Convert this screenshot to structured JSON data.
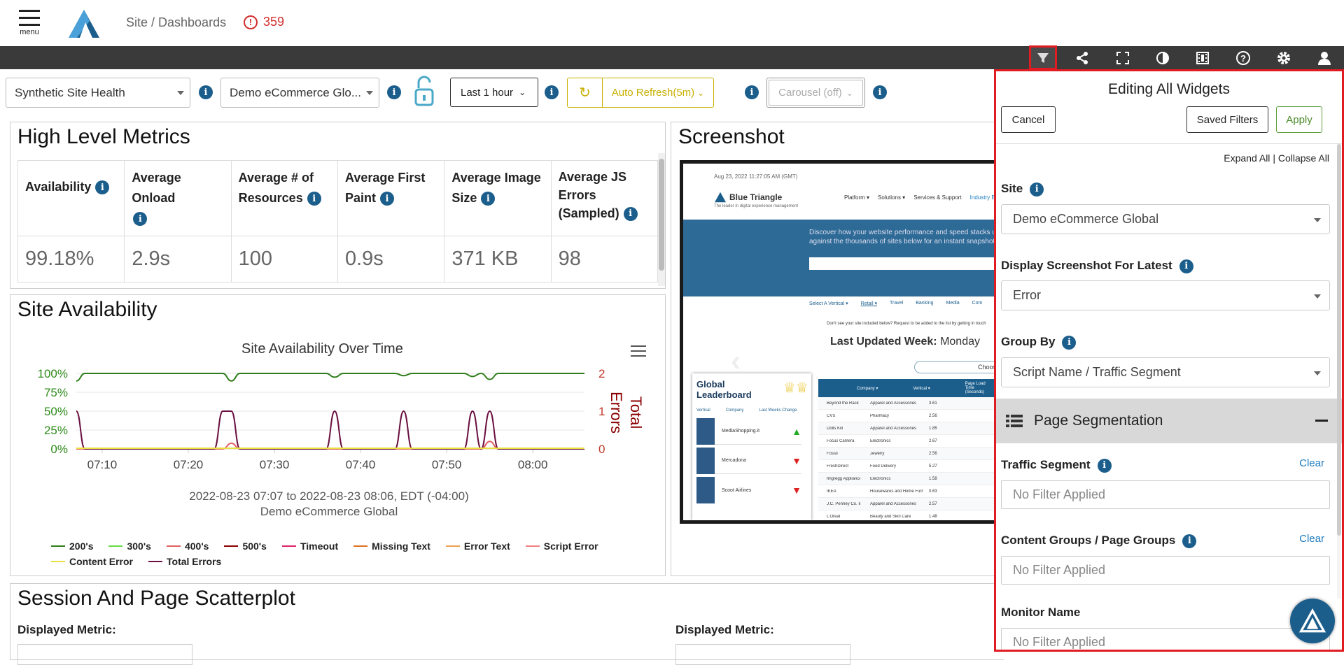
{
  "header": {
    "menu_label": "menu",
    "breadcrumb": "Site / Dashboards",
    "alert_count": "359",
    "alert_icon": "!"
  },
  "toolbar": {
    "icons": [
      "filter-icon",
      "share-icon",
      "fullscreen-icon",
      "contrast-icon",
      "film-icon",
      "help-icon",
      "settings-icon",
      "user-icon"
    ]
  },
  "controls": {
    "dashboard_select": "Synthetic Site Health",
    "site_select": "Demo eCommerce Glo...",
    "time_range": "Last 1 hour",
    "auto_refresh": "Auto Refresh(5m)",
    "carousel": "Carousel (off)"
  },
  "metrics": {
    "title": "High Level Metrics",
    "headers": [
      "Availability",
      "Average Onload",
      "Average # of Resources",
      "Average First Paint",
      "Average Image Size",
      "Average JS Errors (Sampled)"
    ],
    "values": [
      "99.18%",
      "2.9s",
      "100",
      "0.9s",
      "371 KB",
      "98"
    ]
  },
  "availability": {
    "title": "Site Availability",
    "chart_title": "Site Availability Over Time",
    "subtitle1": "2022-08-23 07:07 to 2022-08-23 08:06, EDT (-04:00)",
    "subtitle2": "Demo eCommerce Global",
    "legend": [
      {
        "label": "200's",
        "color": "#2e7d1a"
      },
      {
        "label": "300's",
        "color": "#66dd44"
      },
      {
        "label": "400's",
        "color": "#e06060"
      },
      {
        "label": "500's",
        "color": "#8b0000"
      },
      {
        "label": "Timeout",
        "color": "#e0206a"
      },
      {
        "label": "Missing Text",
        "color": "#e07020"
      },
      {
        "label": "Error Text",
        "color": "#f0a050"
      },
      {
        "label": "Script Error",
        "color": "#f08080"
      },
      {
        "label": "Content Error",
        "color": "#e8e040"
      },
      {
        "label": "Total Errors",
        "color": "#6a1040"
      }
    ]
  },
  "chart_data": {
    "type": "line",
    "title": "Site Availability Over Time",
    "xlabel": "",
    "ylabel_left": "",
    "ylabel_right": "Total Errors",
    "x_ticks": [
      "07:10",
      "07:20",
      "07:30",
      "07:40",
      "07:50",
      "08:00"
    ],
    "y_left_ticks": [
      "0%",
      "25%",
      "50%",
      "75%",
      "100%"
    ],
    "y_right_ticks": [
      "0",
      "1",
      "2"
    ],
    "ylim_left": [
      0,
      100
    ],
    "ylim_right": [
      0,
      2
    ],
    "x": [
      "07:07",
      "07:08",
      "07:09",
      "07:10",
      "07:11",
      "07:12",
      "07:13",
      "07:14",
      "07:15",
      "07:16",
      "07:17",
      "07:18",
      "07:19",
      "07:20",
      "07:21",
      "07:22",
      "07:23",
      "07:24",
      "07:25",
      "07:26",
      "07:27",
      "07:28",
      "07:29",
      "07:30",
      "07:31",
      "07:32",
      "07:33",
      "07:34",
      "07:35",
      "07:36",
      "07:37",
      "07:38",
      "07:39",
      "07:40",
      "07:41",
      "07:42",
      "07:43",
      "07:44",
      "07:45",
      "07:46",
      "07:47",
      "07:48",
      "07:49",
      "07:50",
      "07:51",
      "07:52",
      "07:53",
      "07:54",
      "07:55",
      "07:56",
      "07:57",
      "07:58",
      "07:59",
      "08:00",
      "08:01",
      "08:02",
      "08:03",
      "08:04",
      "08:05",
      "08:06"
    ],
    "series": [
      {
        "name": "200's",
        "axis": "left",
        "values": [
          90,
          100,
          100,
          100,
          100,
          100,
          100,
          100,
          100,
          100,
          100,
          100,
          100,
          100,
          100,
          100,
          100,
          100,
          90,
          100,
          100,
          100,
          100,
          100,
          100,
          100,
          100,
          100,
          100,
          100,
          95,
          100,
          100,
          100,
          100,
          100,
          100,
          100,
          97,
          100,
          100,
          100,
          100,
          100,
          100,
          100,
          96,
          100,
          92,
          100,
          100,
          100,
          100,
          100,
          100,
          100,
          100,
          100,
          100,
          100
        ]
      },
      {
        "name": "Total Errors",
        "axis": "right",
        "values": [
          1,
          0,
          0,
          0,
          0,
          0,
          0,
          0,
          0,
          0,
          0,
          0,
          0,
          0,
          0,
          0,
          0,
          1,
          1,
          0,
          0,
          0,
          0,
          0,
          0,
          0,
          0,
          0,
          0,
          0,
          1,
          0,
          0,
          0,
          0,
          0,
          0,
          0,
          1,
          0,
          0,
          0,
          0,
          0,
          0,
          0,
          1,
          0,
          1,
          0,
          0,
          0,
          0,
          0,
          0,
          0,
          0,
          0,
          0,
          0
        ]
      },
      {
        "name": "400's",
        "axis": "right",
        "values": [
          0,
          0,
          0,
          0,
          0,
          0,
          0,
          0,
          0,
          0,
          0,
          0,
          0,
          0,
          0,
          0,
          0,
          0,
          0.15,
          0,
          0,
          0,
          0,
          0,
          0,
          0,
          0,
          0,
          0,
          0,
          0,
          0,
          0,
          0,
          0,
          0,
          0,
          0,
          0,
          0,
          0,
          0,
          0,
          0,
          0,
          0,
          0,
          0,
          0.2,
          0,
          0,
          0,
          0,
          0,
          0,
          0,
          0,
          0,
          0,
          0
        ]
      }
    ]
  },
  "screenshot": {
    "title": "Screenshot",
    "timestamp": "Aug 23, 2022 11:27:05 AM (GMT)",
    "brand": "Blue Triangle",
    "tagline": "The leader in digital experience management",
    "nav": [
      "Platform ▾",
      "Solutions ▾",
      "Services & Support",
      "Industry B"
    ],
    "hero": "Discover how your website performance and speed stacks up against the thousands of sites below for an instant snapshot of cri",
    "tabs": [
      "Select A Vertical ▾",
      "Retail ▾",
      "Travel",
      "Banking",
      "Media",
      "Com"
    ],
    "note": "Don't see your site included below? Request to be added to the list by getting in touch",
    "updated_label": "Last Updated Week:",
    "updated_value": "Monday",
    "choose": "Choose",
    "leaderboard_title": "Global Leaderboard",
    "leaderboard_cols": [
      "Vertical",
      "Company",
      "Last Weeks Change"
    ],
    "leaderboard_rows": [
      "MediaShopping.it",
      "Mercadona",
      "Scoot Airlines"
    ],
    "table_cols": [
      "Company ▾",
      "Vertical ▾",
      "Page Load Time (Seconds)"
    ],
    "table_rows": [
      [
        "Beyond the Rack",
        "Apparel and Accessories",
        "3.61"
      ],
      [
        "CVS",
        "Pharmacy",
        "2.56"
      ],
      [
        "Dolls Kill",
        "Apparel and Accessories",
        "1.85"
      ],
      [
        "Focus Camera",
        "Electronics",
        "2.67"
      ],
      [
        "Fossil",
        "Jewelry",
        "2.56"
      ],
      [
        "FreshDirect",
        "Food Delivery",
        "5.27"
      ],
      [
        "hhgregg Appliances",
        "Electronics",
        "1.58"
      ],
      [
        "IKEA",
        "Housewares and Home Furnishings",
        "0.63"
      ],
      [
        "J.C. Penney Co. Inc.",
        "Apparel and Accessories",
        "2.57"
      ],
      [
        "L'Oreal",
        "Beauty and Skin Care",
        "1.48"
      ]
    ]
  },
  "scatter": {
    "title": "Session And Page Scatterplot",
    "metric_label_1": "Displayed Metric:",
    "metric_label_2": "Displayed Metric:"
  },
  "filters": {
    "title": "Editing All Widgets",
    "cancel": "Cancel",
    "saved_filters": "Saved Filters",
    "apply": "Apply",
    "expand_all": "Expand All",
    "separator": "|",
    "collapse_all": "Collapse All",
    "site_label": "Site",
    "site_value": "Demo eCommerce Global",
    "latest_label": "Display Screenshot For Latest",
    "latest_value": "Error",
    "group_label": "Group By",
    "group_value": "Script Name / Traffic Segment",
    "section_title": "Page Segmentation",
    "traffic_label": "Traffic Segment",
    "traffic_placeholder": "No Filter Applied",
    "content_label": "Content Groups / Page Groups",
    "content_placeholder": "No Filter Applied",
    "monitor_label": "Monitor Name",
    "monitor_placeholder": "No Filter Applied",
    "clear": "Clear"
  }
}
